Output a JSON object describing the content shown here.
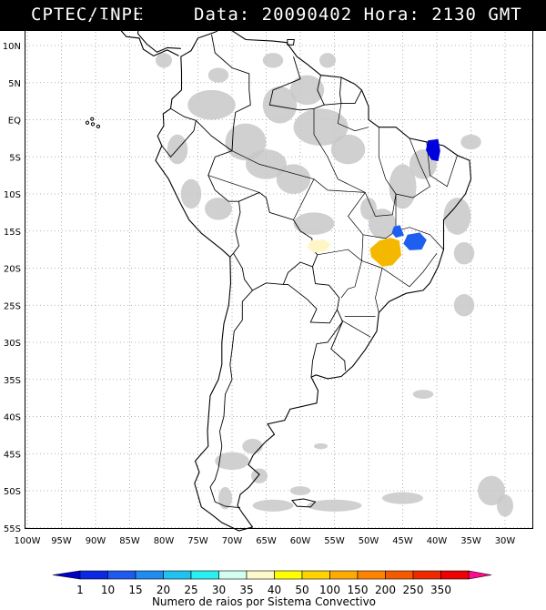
{
  "header": {
    "source": "CPTEC/INPE",
    "datetime": "Data: 20090402 Hora: 2130 GMT"
  },
  "map": {
    "lat_labels": [
      "10N",
      "5N",
      "EQ",
      "5S",
      "10S",
      "15S",
      "20S",
      "25S",
      "30S",
      "35S",
      "40S",
      "45S",
      "50S",
      "55S"
    ],
    "lon_labels": [
      "100W",
      "95W",
      "90W",
      "85W",
      "80W",
      "75W",
      "70W",
      "65W",
      "60W",
      "55W",
      "50W",
      "45W",
      "40W",
      "35W",
      "30W"
    ],
    "colors": {
      "cloud": "#c8c8c8",
      "coast": "#000000",
      "grid": "#9a9a9a",
      "blue_dark": "#0000dd",
      "blue": "#1f5ff0",
      "pale_yellow": "#fff6c8",
      "orange_yellow": "#f5b800"
    }
  },
  "legend": {
    "title": "Numero de raios por Sistema Convectivo",
    "values": [
      "1",
      "10",
      "15",
      "20",
      "25",
      "30",
      "35",
      "40",
      "50",
      "100",
      "150",
      "200",
      "250",
      "350"
    ],
    "colors": [
      "#0000c8",
      "#0a28e6",
      "#1e5af0",
      "#1e8cf0",
      "#1ec3f0",
      "#28f0f0",
      "#d2fff0",
      "#fff8c8",
      "#ffff00",
      "#ffd200",
      "#ffaa00",
      "#ff8200",
      "#f55a00",
      "#f02800",
      "#f00000",
      "#ff0a8c"
    ]
  }
}
